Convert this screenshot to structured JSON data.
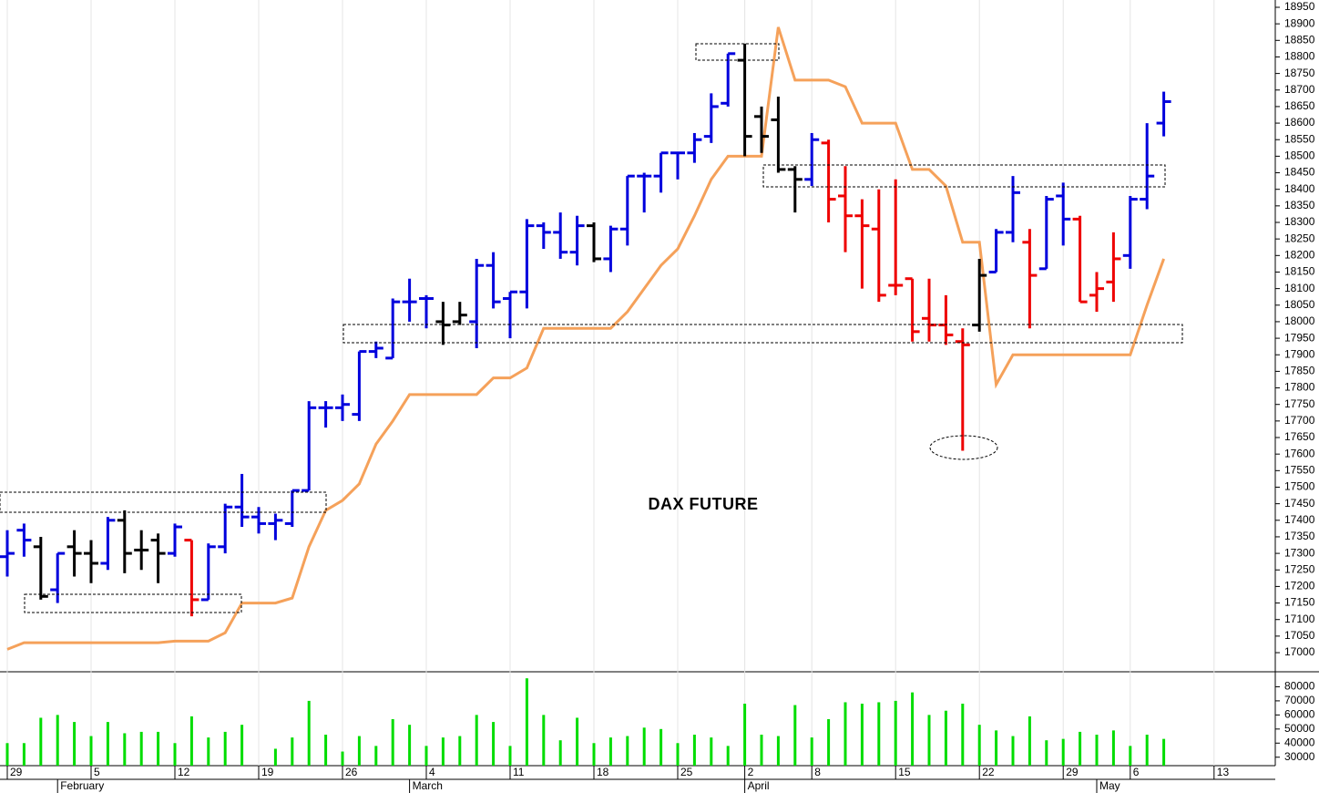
{
  "chart_data": [
    {
      "type": "ohlc",
      "title": "DAX FUTURE",
      "ylim": [
        16945,
        18972
      ],
      "yticks": [
        17000,
        17050,
        17100,
        17150,
        17200,
        17250,
        17300,
        17350,
        17400,
        17450,
        17500,
        17550,
        17600,
        17650,
        17700,
        17750,
        17800,
        17850,
        17900,
        17950,
        18000,
        18050,
        18100,
        18150,
        18200,
        18250,
        18300,
        18350,
        18400,
        18450,
        18500,
        18550,
        18600,
        18650,
        18700,
        18750,
        18800,
        18850,
        18900,
        18950
      ],
      "open": [
        17290,
        17370,
        17320,
        17190,
        17320,
        17300,
        17270,
        17400,
        17310,
        17340,
        17300,
        17340,
        17160,
        17320,
        17440,
        17410,
        17390,
        17390,
        17490,
        17740,
        17740,
        17720,
        17910,
        17890,
        18060,
        18070,
        18000,
        18000,
        18000,
        18170,
        18070,
        18090,
        18290,
        18270,
        18210,
        18290,
        18190,
        18280,
        18440,
        18440,
        18510,
        18510,
        18560,
        18660,
        18790,
        18620,
        18610,
        18460,
        18430,
        18540,
        18380,
        18320,
        18280,
        18110,
        18130,
        18010,
        17990,
        17940,
        17990,
        18150,
        18270,
        18240,
        18160,
        18380,
        18310,
        18080,
        18120,
        18200,
        18370,
        18600,
        null,
        null,
        null
      ],
      "high": [
        17370,
        17390,
        17350,
        17300,
        17370,
        17340,
        17410,
        17430,
        17370,
        17360,
        17390,
        17340,
        17330,
        17450,
        17540,
        17440,
        17420,
        17490,
        17760,
        17760,
        17780,
        17910,
        17940,
        18070,
        18130,
        18080,
        18060,
        18060,
        18190,
        18210,
        18090,
        18310,
        18300,
        18330,
        18320,
        18300,
        18290,
        18440,
        18450,
        18510,
        18510,
        18570,
        18690,
        18810,
        18840,
        18650,
        18680,
        18470,
        18570,
        18550,
        18470,
        18370,
        18400,
        18430,
        18130,
        18130,
        18080,
        17980,
        18190,
        18280,
        18440,
        18280,
        18380,
        18420,
        18320,
        18150,
        18270,
        18380,
        18600,
        18695,
        null,
        null,
        null
      ],
      "low": [
        17230,
        17290,
        17160,
        17150,
        17230,
        17210,
        17250,
        17240,
        17250,
        17210,
        17290,
        17110,
        17160,
        17300,
        17380,
        17360,
        17340,
        17380,
        17490,
        17680,
        17700,
        17700,
        17890,
        17890,
        18000,
        17980,
        17930,
        17990,
        17920,
        18040,
        17950,
        18040,
        18220,
        18190,
        18170,
        18180,
        18150,
        18230,
        18330,
        18390,
        18430,
        18480,
        18540,
        18650,
        18500,
        18510,
        18450,
        18330,
        18410,
        18300,
        18210,
        18100,
        18060,
        18080,
        17940,
        17940,
        17930,
        17610,
        17970,
        18150,
        18240,
        17980,
        18160,
        18230,
        18060,
        18030,
        18060,
        18160,
        18340,
        18560,
        null,
        null,
        null
      ],
      "close": [
        17300,
        17340,
        17170,
        17300,
        17300,
        17270,
        17400,
        17300,
        17310,
        17300,
        17380,
        17160,
        17320,
        17440,
        17410,
        17390,
        17400,
        17490,
        17740,
        17740,
        17750,
        17910,
        17920,
        18060,
        18060,
        18070,
        17990,
        18020,
        18170,
        18060,
        18090,
        18290,
        18270,
        18210,
        18290,
        18190,
        18280,
        18440,
        18440,
        18510,
        18510,
        18550,
        18650,
        18810,
        18560,
        18560,
        18460,
        18430,
        18550,
        18370,
        18320,
        18290,
        18080,
        18110,
        17970,
        17990,
        17960,
        17930,
        18140,
        18270,
        18390,
        18140,
        18370,
        18310,
        18060,
        18100,
        18190,
        18370,
        18440,
        18665,
        null,
        null,
        null
      ],
      "bar_colors": [
        "#0000dd",
        "#0000dd",
        "#000000",
        "#0000dd",
        "#000000",
        "#000000",
        "#0000dd",
        "#000000",
        "#000000",
        "#000000",
        "#0000dd",
        "#ee0000",
        "#0000dd",
        "#0000dd",
        "#0000dd",
        "#0000dd",
        "#0000dd",
        "#0000dd",
        "#0000dd",
        "#0000dd",
        "#0000dd",
        "#0000dd",
        "#0000dd",
        "#0000dd",
        "#0000dd",
        "#0000dd",
        "#000000",
        "#000000",
        "#0000dd",
        "#0000dd",
        "#0000dd",
        "#0000dd",
        "#0000dd",
        "#0000dd",
        "#0000dd",
        "#000000",
        "#0000dd",
        "#0000dd",
        "#0000dd",
        "#0000dd",
        "#0000dd",
        "#0000dd",
        "#0000dd",
        "#0000dd",
        "#000000",
        "#000000",
        "#000000",
        "#000000",
        "#0000dd",
        "#ee0000",
        "#ee0000",
        "#ee0000",
        "#ee0000",
        "#ee0000",
        "#ee0000",
        "#ee0000",
        "#ee0000",
        "#ee0000",
        "#000000",
        "#0000dd",
        "#0000dd",
        "#ee0000",
        "#0000dd",
        "#0000dd",
        "#ee0000",
        "#ee0000",
        "#ee0000",
        "#0000dd",
        "#0000dd",
        "#0000dd",
        null,
        null,
        null
      ],
      "line": {
        "color": "#f5a15a",
        "values": [
          17010,
          17030,
          17030,
          17030,
          17030,
          17030,
          17030,
          17030,
          17030,
          17030,
          17035,
          17035,
          17035,
          17060,
          17150,
          17150,
          17150,
          17165,
          17320,
          17430,
          17460,
          17510,
          17630,
          17700,
          17780,
          17780,
          17780,
          17780,
          17780,
          17830,
          17830,
          17860,
          17980,
          17980,
          17980,
          17980,
          17980,
          18030,
          18100,
          18170,
          18220,
          18320,
          18430,
          18500,
          18500,
          18500,
          18890,
          18730,
          18730,
          18730,
          18710,
          18600,
          18600,
          18600,
          18460,
          18460,
          18410,
          18240,
          18240,
          17810,
          17900,
          17900,
          17900,
          17900,
          17900,
          17900,
          17900,
          17900,
          18050,
          18190,
          null,
          null,
          null
        ]
      }
    },
    {
      "type": "bar",
      "color": "#00dd00",
      "ylim": [
        24000,
        90000
      ],
      "yticks": [
        30000,
        40000,
        50000,
        60000,
        70000,
        80000
      ],
      "values": [
        40000,
        40000,
        58000,
        60000,
        55000,
        45000,
        55000,
        47000,
        48000,
        48000,
        40000,
        59000,
        44000,
        48000,
        53000,
        null,
        36000,
        44000,
        70000,
        46000,
        34000,
        45000,
        38000,
        57000,
        53000,
        38000,
        44000,
        45000,
        60000,
        55000,
        38000,
        86000,
        60000,
        42000,
        58000,
        40000,
        44000,
        45000,
        51000,
        50000,
        40000,
        46000,
        44000,
        38000,
        68000,
        46000,
        45000,
        67000,
        44000,
        57000,
        69000,
        68000,
        69000,
        70000,
        76000,
        60000,
        63000,
        68000,
        53000,
        49000,
        45000,
        59000,
        42000,
        43000,
        48000,
        46000,
        49000,
        38000,
        46000,
        43000,
        null,
        null,
        null
      ],
      "categories": [
        "29",
        null,
        null,
        null,
        null,
        "5",
        null,
        null,
        null,
        null,
        "12",
        null,
        null,
        null,
        null,
        "19",
        null,
        null,
        null,
        null,
        "26",
        null,
        null,
        null,
        null,
        "4",
        null,
        null,
        null,
        null,
        "11",
        null,
        null,
        null,
        null,
        "18",
        null,
        null,
        null,
        null,
        "25",
        null,
        null,
        null,
        "2",
        null,
        null,
        null,
        "8",
        null,
        null,
        null,
        null,
        "15",
        null,
        null,
        null,
        null,
        "22",
        null,
        null,
        null,
        null,
        "29",
        null,
        null,
        null,
        "6",
        null,
        null,
        null,
        null,
        "13"
      ],
      "months": [
        null,
        null,
        null,
        "February",
        null,
        null,
        null,
        null,
        null,
        null,
        null,
        null,
        null,
        null,
        null,
        null,
        null,
        null,
        null,
        null,
        null,
        null,
        null,
        null,
        "March",
        null,
        null,
        null,
        null,
        null,
        null,
        null,
        null,
        null,
        null,
        null,
        null,
        null,
        null,
        null,
        null,
        null,
        null,
        null,
        "April",
        null,
        null,
        null,
        null,
        null,
        null,
        null,
        null,
        null,
        null,
        null,
        null,
        null,
        null,
        null,
        null,
        null,
        null,
        null,
        null,
        "May",
        null,
        null,
        null,
        null,
        null,
        null,
        null
      ]
    }
  ]
}
